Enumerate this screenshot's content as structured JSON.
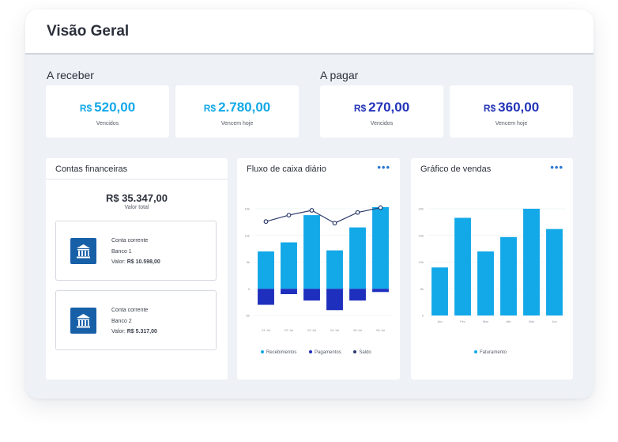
{
  "page": {
    "title": "Visão Geral"
  },
  "receber": {
    "label": "A receber",
    "cards": [
      {
        "currency": "R$",
        "amount": "520,00",
        "caption": "Vencidos",
        "color": "#13a8e8"
      },
      {
        "currency": "R$",
        "amount": "2.780,00",
        "caption": "Vencem hoje",
        "color": "#13a8e8"
      }
    ]
  },
  "pagar": {
    "label": "A pagar",
    "cards": [
      {
        "currency": "R$",
        "amount": "270,00",
        "caption": "Vencidos",
        "color": "#2334b8"
      },
      {
        "currency": "R$",
        "amount": "360,00",
        "caption": "Vencem hoje",
        "color": "#2334b8"
      }
    ]
  },
  "contas": {
    "title": "Contas financeiras",
    "total_value": "R$ 35.347,00",
    "total_label": "Valor total",
    "accounts": [
      {
        "type": "Conta corrente",
        "bank": "Banco 1",
        "value_label": "Valor:",
        "value": "R$ 10.598,00",
        "icon": "bank-icon"
      },
      {
        "type": "Conta corrente",
        "bank": "Banco 2",
        "value_label": "Valor:",
        "value": "R$ 5.317,00",
        "icon": "bank-icon"
      }
    ]
  },
  "fluxo": {
    "title": "Fluxo de caixa diário",
    "menu": "•••",
    "legend": [
      "Recebimentos",
      "Pagamentos",
      "Saldo"
    ]
  },
  "vendas": {
    "title": "Gráfico de vendas",
    "menu": "•••",
    "legend": [
      "Faturamento"
    ]
  },
  "colors": {
    "accent_light": "#13a8e8",
    "accent_dark": "#2334b8",
    "saldo": "#2c3a6b",
    "bank": "#1760a8"
  },
  "chart_data": [
    {
      "type": "bar",
      "title": "Fluxo de caixa diário",
      "categories": [
        "01 Jul",
        "02 Jul",
        "03 Jul",
        "04 Jul",
        "05 Jul",
        "06 Jul"
      ],
      "yticks": [
        "15k",
        "10k",
        "5k",
        "0",
        "-5k"
      ],
      "ylim": [
        -5,
        15
      ],
      "series": [
        {
          "name": "Recebimentos",
          "kind": "bar",
          "color": "#13a8e8",
          "values": [
            7,
            8.7,
            13.8,
            7.2,
            11.5,
            15.3
          ]
        },
        {
          "name": "Pagamentos",
          "kind": "bar",
          "color": "#1f2fbd",
          "values": [
            -3.0,
            -1.0,
            -2.2,
            -4.0,
            -2.2,
            -0.6
          ]
        },
        {
          "name": "Saldo",
          "kind": "line",
          "color": "#2c3a6b",
          "values": [
            12.6,
            13.8,
            14.7,
            12.3,
            14.3,
            15.2
          ]
        }
      ],
      "legend_position": "bottom"
    },
    {
      "type": "bar",
      "title": "Gráfico de vendas",
      "categories": [
        "Jan",
        "Fev",
        "Mar",
        "Abr",
        "Mai",
        "Jun"
      ],
      "yticks": [
        "20k",
        "15k",
        "10k",
        "5k",
        "0"
      ],
      "ylim": [
        0,
        20
      ],
      "series": [
        {
          "name": "Faturamento",
          "color": "#13a8e8",
          "values": [
            9,
            18.3,
            12,
            14.7,
            20,
            16.2
          ]
        }
      ],
      "legend_position": "bottom"
    }
  ]
}
